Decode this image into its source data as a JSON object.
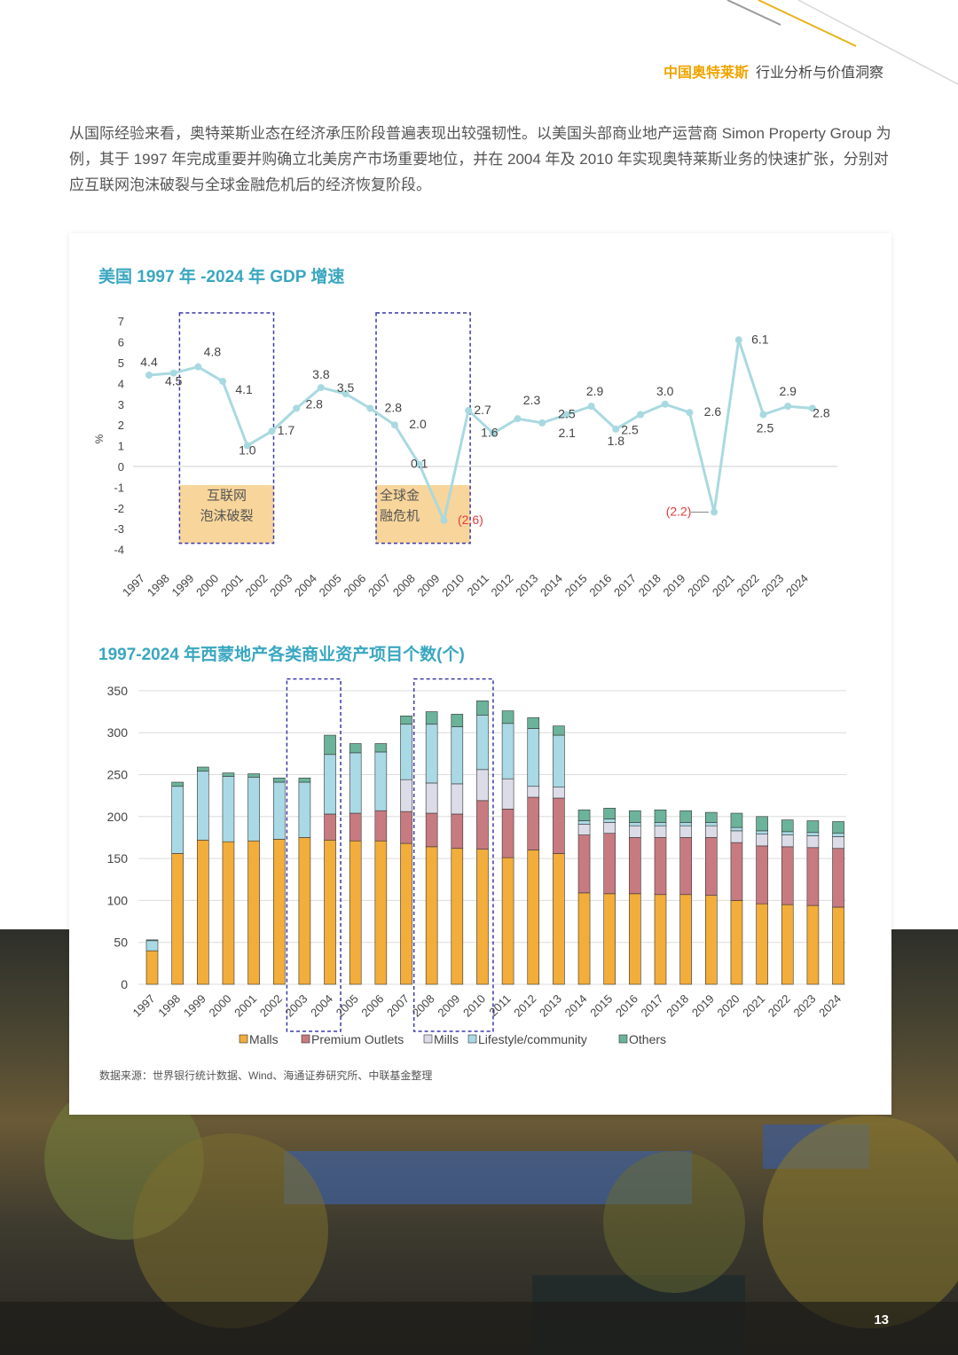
{
  "header": {
    "brand": "中国奥特莱斯",
    "title": "行业分析与价值洞察"
  },
  "intro": "从国际经验来看，奥特莱斯业态在经济承压阶段普遍表现出较强韧性。以美国头部商业地产运营商 Simon Property Group 为例，其于 1997 年完成重要并购确立北美房产市场重要地位，并在 2004 年及 2010 年实现奥特莱斯业务的快速扩张，分别对应互联网泡沫破裂与全球金融危机后的经济恢复阶段。",
  "colors": {
    "accent": "#f0a400",
    "title": "#3aa7c0",
    "line": "#a9d9e0",
    "negative": "#e23b3b",
    "box_fill": "#f8d59a",
    "box_border": "#3b3ba8",
    "malls": "#f2ad3a",
    "premium": "#c77b80",
    "mills": "#dcdce8",
    "lifestyle": "#a9d9e4",
    "others": "#6bb39a"
  },
  "chart_data": [
    {
      "type": "line",
      "title": "美国 1997 年 -2024 年 GDP 增速",
      "ylabel": "%",
      "ylim": [
        -4,
        7
      ],
      "yticks": [
        "7",
        "6",
        "5",
        "4",
        "3",
        "2",
        "1",
        "0",
        "-1",
        "-2",
        "-3",
        "-4"
      ],
      "x": [
        "1997",
        "1998",
        "1999",
        "2000",
        "2001",
        "2002",
        "2003",
        "2004",
        "2005",
        "2006",
        "2007",
        "2008",
        "2009",
        "2010",
        "2011",
        "2012",
        "2013",
        "2014",
        "2015",
        "2016",
        "2017",
        "2018",
        "2019",
        "2020",
        "2021",
        "2022",
        "2023",
        "2024"
      ],
      "values": [
        4.4,
        4.5,
        4.8,
        4.1,
        1.0,
        1.7,
        2.8,
        3.8,
        3.5,
        2.8,
        2.0,
        0.1,
        -2.6,
        2.7,
        1.6,
        2.3,
        2.1,
        2.5,
        2.9,
        1.8,
        2.5,
        3.0,
        2.6,
        -2.2,
        6.1,
        2.5,
        2.9,
        2.8
      ],
      "labels": [
        "4.4",
        "4.5",
        "4.8",
        "4.1",
        "1.0",
        "1.7",
        "2.8",
        "3.8",
        "3.5",
        "2.8",
        "2.0",
        "0.1",
        "(2.6)",
        "2.7",
        "1.6",
        "2.3",
        "2.1",
        "2.5",
        "2.9",
        "1.8",
        "2.5",
        "3.0",
        "2.6",
        "(2.2)",
        "6.1",
        "2.5",
        "2.9",
        "2.8"
      ],
      "annotations": [
        {
          "years": [
            "1999",
            "2002"
          ],
          "text": [
            "互联网",
            "泡沫破裂"
          ]
        },
        {
          "years": [
            "2007",
            "2010"
          ],
          "text": [
            "全球金",
            "融危机"
          ]
        }
      ]
    },
    {
      "type": "bar",
      "stacked": true,
      "title": "1997-2024 年西蒙地产各类商业资产项目个数(个)",
      "ylim": [
        0,
        350
      ],
      "yticks": [
        "350",
        "300",
        "250",
        "200",
        "150",
        "100",
        "50",
        "0"
      ],
      "categories": [
        "1997",
        "1998",
        "1999",
        "2000",
        "2001",
        "2002",
        "2003",
        "2004",
        "2005",
        "2006",
        "2007",
        "2008",
        "2009",
        "2010",
        "2011",
        "2012",
        "2013",
        "2014",
        "2015",
        "2016",
        "2017",
        "2018",
        "2019",
        "2020",
        "2021",
        "2022",
        "2023",
        "2024"
      ],
      "legend_position": "bottom",
      "series": [
        {
          "name": "Malls",
          "values": [
            40,
            156,
            172,
            170,
            171,
            173,
            175,
            172,
            171,
            171,
            168,
            164,
            162,
            161,
            151,
            160,
            156,
            109,
            108,
            108,
            107,
            107,
            106,
            100,
            96,
            95,
            94,
            92
          ]
        },
        {
          "name": "Premium Outlets",
          "values": [
            0,
            0,
            0,
            0,
            0,
            0,
            0,
            31,
            33,
            36,
            38,
            40,
            41,
            58,
            58,
            63,
            66,
            69,
            72,
            67,
            68,
            68,
            69,
            69,
            69,
            69,
            69,
            70
          ]
        },
        {
          "name": "Mills",
          "values": [
            0,
            0,
            0,
            0,
            0,
            0,
            0,
            0,
            0,
            0,
            38,
            36,
            36,
            37,
            36,
            13,
            13,
            13,
            13,
            14,
            14,
            14,
            14,
            14,
            14,
            14,
            14,
            14
          ]
        },
        {
          "name": "Lifestyle/community",
          "values": [
            12,
            80,
            82,
            78,
            76,
            68,
            66,
            71,
            72,
            70,
            66,
            70,
            68,
            65,
            66,
            69,
            62,
            4,
            4,
            4,
            4,
            4,
            4,
            4,
            4,
            4,
            4,
            4
          ]
        },
        {
          "name": "Others",
          "values": [
            1,
            5,
            5,
            4,
            4,
            5,
            5,
            23,
            11,
            10,
            10,
            15,
            15,
            17,
            15,
            13,
            11,
            13,
            13,
            14,
            15,
            14,
            12,
            17,
            17,
            14,
            14,
            14
          ]
        }
      ],
      "highlight_years": [
        [
          "2003",
          "2004"
        ],
        [
          "2008",
          "2010"
        ]
      ]
    }
  ],
  "source": "数据来源：世界银行统计数据、Wind、海通证券研究所、中联基金整理",
  "page_number": "13"
}
